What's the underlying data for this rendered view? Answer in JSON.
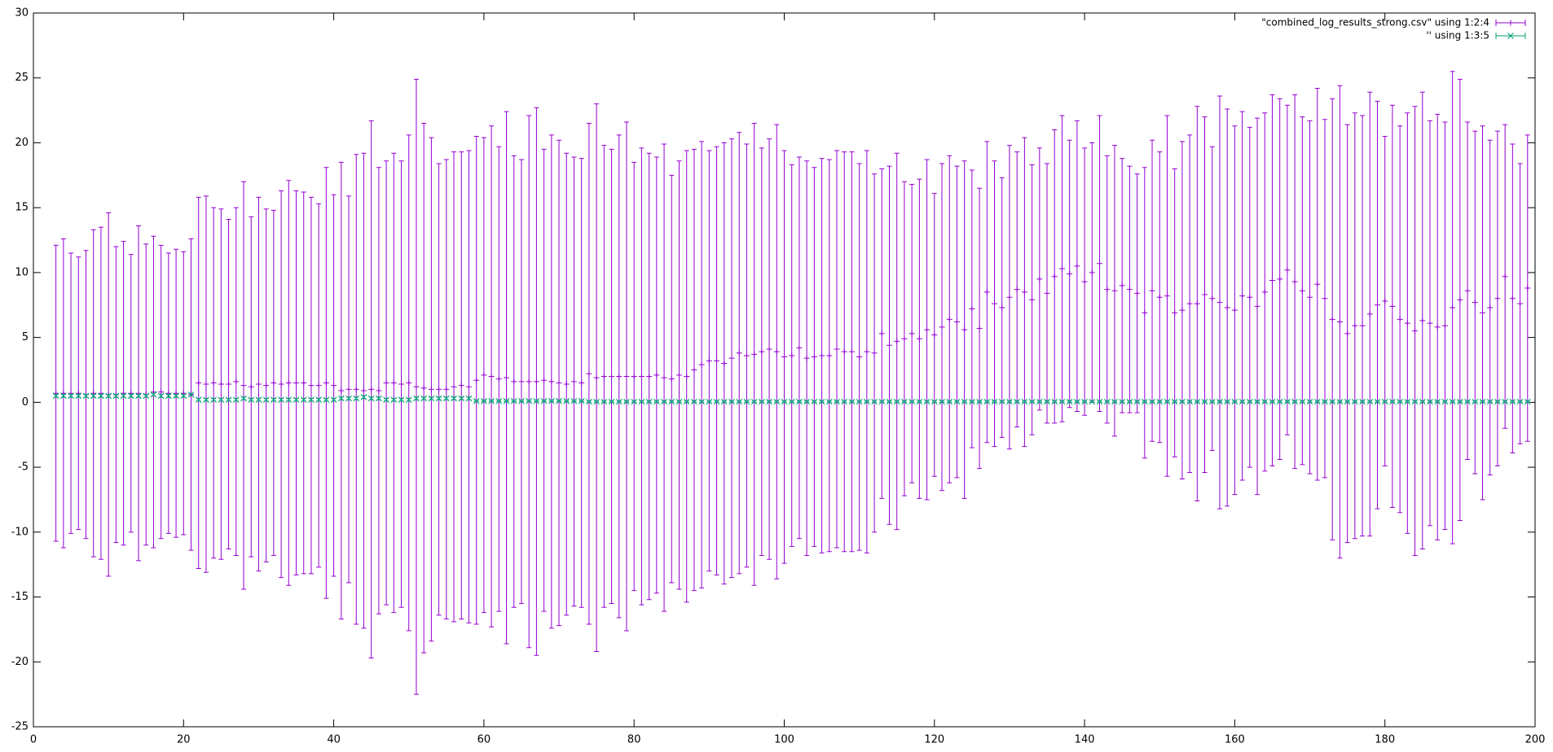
{
  "chart_data": {
    "type": "errorbar",
    "x": [
      3,
      4,
      5,
      6,
      7,
      8,
      9,
      10,
      11,
      12,
      13,
      14,
      15,
      16,
      17,
      18,
      19,
      20,
      21,
      22,
      23,
      24,
      25,
      26,
      27,
      28,
      29,
      30,
      31,
      32,
      33,
      34,
      35,
      36,
      37,
      38,
      39,
      40,
      41,
      42,
      43,
      44,
      45,
      46,
      47,
      48,
      49,
      50,
      51,
      52,
      53,
      54,
      55,
      56,
      57,
      58,
      59,
      60,
      61,
      62,
      63,
      64,
      65,
      66,
      67,
      68,
      69,
      70,
      71,
      72,
      73,
      74,
      75,
      76,
      77,
      78,
      79,
      80,
      81,
      82,
      83,
      84,
      85,
      86,
      87,
      88,
      89,
      90,
      91,
      92,
      93,
      94,
      95,
      96,
      97,
      98,
      99,
      100,
      101,
      102,
      103,
      104,
      105,
      106,
      107,
      108,
      109,
      110,
      111,
      112,
      113,
      114,
      115,
      116,
      117,
      118,
      119,
      120,
      121,
      122,
      123,
      124,
      125,
      126,
      127,
      128,
      129,
      130,
      131,
      132,
      133,
      134,
      135,
      136,
      137,
      138,
      139,
      140,
      141,
      142,
      143,
      144,
      145,
      146,
      147,
      148,
      149,
      150,
      151,
      152,
      153,
      154,
      155,
      156,
      157,
      158,
      159,
      160,
      161,
      162,
      163,
      164,
      165,
      166,
      167,
      168,
      169,
      170,
      171,
      172,
      173,
      174,
      175,
      176,
      177,
      178,
      179,
      180,
      181,
      182,
      183,
      184,
      185,
      186,
      187,
      188,
      189,
      190,
      191,
      192,
      193,
      194,
      195,
      196,
      197,
      198,
      199
    ],
    "series": [
      {
        "name": "\"combined_log_results_strong.csv\" using 1:2:4",
        "color": "#9400d3",
        "marker": "plus",
        "values": [
          0.7,
          0.7,
          0.7,
          0.7,
          0.6,
          0.7,
          0.7,
          0.6,
          0.6,
          0.7,
          0.7,
          0.7,
          0.6,
          0.8,
          0.8,
          0.7,
          0.7,
          0.7,
          0.6,
          1.5,
          1.4,
          1.5,
          1.4,
          1.4,
          1.6,
          1.3,
          1.2,
          1.4,
          1.3,
          1.5,
          1.4,
          1.5,
          1.5,
          1.5,
          1.3,
          1.3,
          1.5,
          1.3,
          0.9,
          1.0,
          1.0,
          0.9,
          1.0,
          0.9,
          1.5,
          1.5,
          1.4,
          1.5,
          1.2,
          1.1,
          1.0,
          1.0,
          1.0,
          1.2,
          1.3,
          1.2,
          1.7,
          2.1,
          2.0,
          1.8,
          1.9,
          1.6,
          1.6,
          1.6,
          1.6,
          1.7,
          1.6,
          1.5,
          1.4,
          1.6,
          1.5,
          2.2,
          1.9,
          2.0,
          2.0,
          2.0,
          2.0,
          2.0,
          2.0,
          2.0,
          2.1,
          1.9,
          1.8,
          2.1,
          2.0,
          2.5,
          2.9,
          3.2,
          3.2,
          3.0,
          3.4,
          3.8,
          3.6,
          3.7,
          3.9,
          4.1,
          3.9,
          3.5,
          3.6,
          4.2,
          3.4,
          3.5,
          3.6,
          3.6,
          4.1,
          3.9,
          3.9,
          3.5,
          3.9,
          3.8,
          5.3,
          4.4,
          4.7,
          4.9,
          5.3,
          4.9,
          5.6,
          5.2,
          5.8,
          6.4,
          6.2,
          5.6,
          7.2,
          5.7,
          8.5,
          7.6,
          7.3,
          8.1,
          8.7,
          8.5,
          7.9,
          9.5,
          8.4,
          9.7,
          10.3,
          9.9,
          10.5,
          9.3,
          10.0,
          10.7,
          8.7,
          8.6,
          9.0,
          8.7,
          8.4,
          6.9,
          8.6,
          8.1,
          8.2,
          6.9,
          7.1,
          7.6,
          7.6,
          8.3,
          8.0,
          7.7,
          7.3,
          7.1,
          8.2,
          8.1,
          7.4,
          8.5,
          9.4,
          9.5,
          10.2,
          9.3,
          8.6,
          8.1,
          9.1,
          8.0,
          6.4,
          6.2,
          5.3,
          5.9,
          5.9,
          6.8,
          7.5,
          7.8,
          7.4,
          6.4,
          6.1,
          5.5,
          6.3,
          6.1,
          5.8,
          5.9,
          7.3,
          7.9,
          8.6,
          7.7,
          6.9,
          7.3,
          8.0,
          9.7,
          8.0,
          7.6,
          8.8
        ],
        "errors": [
          11.4,
          11.9,
          10.8,
          10.5,
          11.1,
          12.6,
          12.8,
          14.0,
          11.4,
          11.7,
          10.7,
          12.9,
          11.6,
          12,
          11.3,
          10.8,
          11.1,
          10.9,
          12,
          14.3,
          14.5,
          13.5,
          13.5,
          12.7,
          13.4,
          15.7,
          13.1,
          14.4,
          13.6,
          13.3,
          14.9,
          15.6,
          14.8,
          14.7,
          14.5,
          14,
          16.6,
          14.7,
          17.6,
          14.9,
          18.1,
          18.3,
          20.7,
          17.2,
          17.1,
          17.7,
          17.2,
          19.1,
          23.7,
          20.4,
          19.4,
          17.4,
          17.7,
          18.1,
          18,
          18.2,
          18.8,
          18.3,
          19.3,
          17.9,
          20.5,
          17.4,
          17.1,
          20.5,
          21.1,
          17.8,
          19,
          18.7,
          17.8,
          17.3,
          17.3,
          19.3,
          21.1,
          17.8,
          17.5,
          18.6,
          19.6,
          16.5,
          17.6,
          17.2,
          16.8,
          18,
          15.7,
          16.5,
          17.4,
          17,
          17.2,
          16.2,
          16.5,
          17,
          16.9,
          17,
          16.3,
          17.8,
          15.7,
          16.2,
          17.5,
          15.9,
          14.7,
          14.7,
          15.2,
          14.6,
          15.2,
          15.1,
          15.3,
          15.4,
          15.4,
          14.9,
          15.5,
          13.8,
          12.7,
          13.8,
          14.5,
          12.1,
          11.5,
          12.3,
          13.1,
          10.9,
          12.6,
          12.6,
          12,
          13,
          10.7,
          10.8,
          11.6,
          11,
          10,
          11.7,
          10.6,
          11.9,
          10.4,
          10.1,
          10,
          11.3,
          11.8,
          10.3,
          11.2,
          10.3,
          10,
          11.4,
          10.3,
          11.2,
          9.8,
          9.5,
          9.2,
          11.2,
          11.6,
          11.2,
          13.9,
          11.1,
          13,
          13,
          15.2,
          13.7,
          11.7,
          15.9,
          15.3,
          14.2,
          14.2,
          13.1,
          14.5,
          13.8,
          14.3,
          13.9,
          12.7,
          14.4,
          13.4,
          13.6,
          15.1,
          13.8,
          17,
          18.2,
          16.1,
          16.4,
          16.2,
          17.1,
          15.7,
          12.7,
          15.5,
          14.9,
          16.2,
          17.3,
          17.6,
          15.6,
          16.4,
          15.7,
          18.2,
          17,
          13,
          13.2,
          14.4,
          12.9,
          12.9,
          11.7,
          11.9,
          10.8,
          11.8
        ]
      },
      {
        "name": "'' using 1:3:5",
        "color": "#009e73",
        "marker": "cross",
        "values": [
          0.5,
          0.5,
          0.5,
          0.5,
          0.5,
          0.5,
          0.5,
          0.5,
          0.5,
          0.5,
          0.5,
          0.5,
          0.5,
          0.6,
          0.5,
          0.5,
          0.5,
          0.5,
          0.6,
          0.2,
          0.2,
          0.2,
          0.2,
          0.2,
          0.2,
          0.3,
          0.2,
          0.2,
          0.2,
          0.2,
          0.2,
          0.2,
          0.2,
          0.2,
          0.2,
          0.2,
          0.2,
          0.2,
          0.3,
          0.3,
          0.3,
          0.4,
          0.3,
          0.3,
          0.2,
          0.2,
          0.2,
          0.2,
          0.3,
          0.3,
          0.3,
          0.3,
          0.3,
          0.3,
          0.3,
          0.3,
          0.1,
          0.1,
          0.1,
          0.1,
          0.1,
          0.1,
          0.1,
          0.1,
          0.1,
          0.1,
          0.1,
          0.1,
          0.1,
          0.1,
          0.1,
          0.05,
          0.05,
          0.05,
          0.05,
          0.05,
          0.05,
          0.05,
          0.05,
          0.05,
          0.05,
          0.05,
          0.05,
          0.05,
          0.05,
          0.05,
          0.05,
          0.05,
          0.05,
          0.05,
          0.05,
          0.05,
          0.05,
          0.05,
          0.05,
          0.05,
          0.05,
          0.05,
          0.05,
          0.05,
          0.05,
          0.05,
          0.05,
          0.05,
          0.05,
          0.05,
          0.05,
          0.05,
          0.05,
          0.05,
          0.05,
          0.05,
          0.05,
          0.05,
          0.05,
          0.05,
          0.05,
          0.05,
          0.05,
          0.05,
          0.05,
          0.05,
          0.05,
          0.05,
          0.05,
          0.05,
          0.05,
          0.05,
          0.05,
          0.05,
          0.05,
          0.05,
          0.05,
          0.05,
          0.05,
          0.05,
          0.05,
          0.05,
          0.05,
          0.05,
          0.05,
          0.05,
          0.05,
          0.05,
          0.05,
          0.05,
          0.05,
          0.05,
          0.05,
          0.05,
          0.05,
          0.05,
          0.05,
          0.05,
          0.05,
          0.05,
          0.05,
          0.05,
          0.05,
          0.05,
          0.05,
          0.05,
          0.05,
          0.05,
          0.05,
          0.05,
          0.05,
          0.05,
          0.05,
          0.05,
          0.05,
          0.05,
          0.05,
          0.05,
          0.05,
          0.05,
          0.05,
          0.05,
          0.05,
          0.05,
          0.05,
          0.05,
          0.05,
          0.05,
          0.05,
          0.05,
          0.05,
          0.05,
          0.05,
          0.05,
          0.05,
          0.05,
          0.05,
          0.05,
          0.05,
          0.05,
          0.05
        ],
        "errors": [
          0.1,
          0.1,
          0.1,
          0.1,
          0.1,
          0.1,
          0.1,
          0.1,
          0.1,
          0.1,
          0.1,
          0.1,
          0.1,
          0.1,
          0.1,
          0.1,
          0.1,
          0.1,
          0.1,
          0.1,
          0.1,
          0.1,
          0.1,
          0.1,
          0.1,
          0.1,
          0.1,
          0.1,
          0.1,
          0.1,
          0.1,
          0.1,
          0.1,
          0.1,
          0.1,
          0.1,
          0.1,
          0.1,
          0.1,
          0.1,
          0.1,
          0.1,
          0.1,
          0.1,
          0.1,
          0.1,
          0.1,
          0.1,
          0.1,
          0.1,
          0.1,
          0.1,
          0.1,
          0.1,
          0.1,
          0.1,
          0.05,
          0.05,
          0.05,
          0.05,
          0.05,
          0.05,
          0.05,
          0.05,
          0.05,
          0.05,
          0.05,
          0.05,
          0.05,
          0.05,
          0.05,
          0.05,
          0.05,
          0.05,
          0.05,
          0.05,
          0.05,
          0.05,
          0.05,
          0.05,
          0.05,
          0.05,
          0.05,
          0.05,
          0.05,
          0.05,
          0.05,
          0.05,
          0.05,
          0.05,
          0.05,
          0.05,
          0.05,
          0.05,
          0.05,
          0.05,
          0.05,
          0.05,
          0.05,
          0.05,
          0.05,
          0.05,
          0.05,
          0.05,
          0.05,
          0.05,
          0.05,
          0.05,
          0.05,
          0.05,
          0.05,
          0.05,
          0.05,
          0.05,
          0.05,
          0.05,
          0.05,
          0.05,
          0.05,
          0.05,
          0.05,
          0.05,
          0.05,
          0.05,
          0.05,
          0.05,
          0.05,
          0.05,
          0.05,
          0.05,
          0.05,
          0.05,
          0.05,
          0.05,
          0.05,
          0.05,
          0.05,
          0.05,
          0.05,
          0.05,
          0.05,
          0.05,
          0.05,
          0.05,
          0.05,
          0.05,
          0.05,
          0.05,
          0.05,
          0.05,
          0.05,
          0.05,
          0.05,
          0.05,
          0.05,
          0.05,
          0.05,
          0.05,
          0.05,
          0.05,
          0.05,
          0.05,
          0.05,
          0.05,
          0.05,
          0.05,
          0.05,
          0.05,
          0.05,
          0.05,
          0.05,
          0.05,
          0.05,
          0.05,
          0.05,
          0.05,
          0.05,
          0.05,
          0.05,
          0.05,
          0.05,
          0.05,
          0.05,
          0.05,
          0.05,
          0.05,
          0.05,
          0.05,
          0.05,
          0.05,
          0.05,
          0.05,
          0.05,
          0.05,
          0.05,
          0.05,
          0.05
        ]
      }
    ],
    "xlim": [
      0,
      200
    ],
    "xticks": [
      0,
      20,
      40,
      60,
      80,
      100,
      120,
      140,
      160,
      180,
      200
    ],
    "ylim": [
      -25,
      30
    ],
    "yticks": [
      -25,
      -20,
      -15,
      -10,
      -5,
      0,
      5,
      10,
      15,
      20,
      25,
      30
    ],
    "legend": "top-right"
  }
}
